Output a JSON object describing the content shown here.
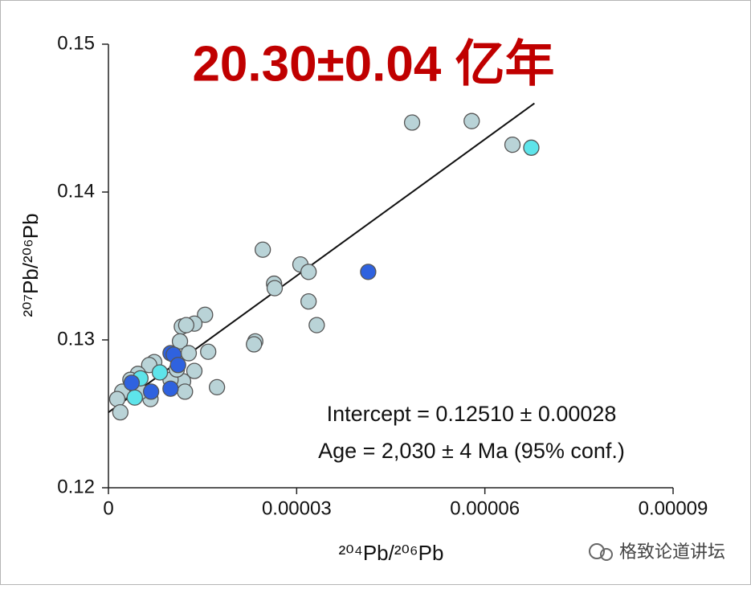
{
  "chart_data": {
    "type": "scatter",
    "title": "20.30±0.04 亿年",
    "x_label": "²⁰⁴Pb/²⁰⁶Pb",
    "y_label": "²⁰⁷Pb/²⁰⁶Pb",
    "annotations": [
      "Intercept = 0.12510 ± 0.00028",
      "Age = 2,030 ± 4 Ma (95% conf.)"
    ],
    "watermark": "格致论道讲坛",
    "xlim": [
      0,
      9e-05
    ],
    "ylim": [
      0.12,
      0.15
    ],
    "xticks": [
      0,
      3e-05,
      6e-05,
      9e-05
    ],
    "yticks": [
      0.12,
      0.13,
      0.14,
      0.15
    ],
    "fit": {
      "color": "#111111",
      "x": [
        0,
        6.79e-05
      ],
      "y": [
        0.1251,
        0.146
      ]
    },
    "series": [
      {
        "color": "#b9d3d7",
        "x": [
          4.84e-05,
          5.79e-05,
          6.44e-05,
          2.46e-05,
          3.06e-05,
          3.19e-05,
          2.64e-05,
          2.65e-05,
          3.19e-05,
          3.32e-05,
          2.34e-05,
          2.32e-05,
          1.54e-05,
          1.37e-05,
          1.17e-05,
          1.24e-05,
          1.14e-05,
          1.28e-05,
          1.59e-05,
          1.37e-05,
          1.19e-05,
          1.22e-05,
          1.73e-05,
          9.9e-06,
          7.3e-06,
          6.5e-06,
          4.7e-06,
          3.5e-06,
          2.2e-06,
          1.4e-06,
          1.9e-06,
          6.7e-06,
          5.1e-06,
          1.09e-05
        ],
        "values": [
          0.1447,
          0.1448,
          0.1432,
          0.1361,
          0.1351,
          0.1346,
          0.1338,
          0.1335,
          0.1326,
          0.131,
          0.1299,
          0.1297,
          0.1317,
          0.1311,
          0.1309,
          0.131,
          0.1299,
          0.1291,
          0.1292,
          0.1279,
          0.1272,
          0.1265,
          0.1268,
          0.1273,
          0.1285,
          0.1283,
          0.1277,
          0.1273,
          0.1265,
          0.126,
          0.1251,
          0.126,
          0.1265,
          0.128
        ]
      },
      {
        "color": "#5ee4ea",
        "x": [
          6.74e-05,
          5.1e-06,
          8.2e-06,
          4.2e-06
        ],
        "values": [
          0.143,
          0.1274,
          0.1278,
          0.1261
        ]
      },
      {
        "color": "#2f62df",
        "x": [
          4.14e-05,
          9.9e-06,
          1.04e-05,
          1.11e-05,
          3.7e-06,
          6.8e-06,
          9.9e-06
        ],
        "values": [
          0.1346,
          0.1291,
          0.129,
          0.1283,
          0.1271,
          0.1265,
          0.1267
        ]
      }
    ]
  }
}
